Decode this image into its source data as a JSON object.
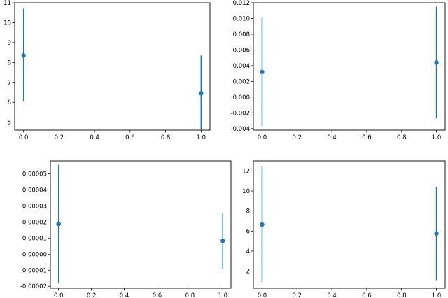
{
  "chart_data": [
    {
      "type": "scatter",
      "error_bars": true,
      "x": [
        0.0,
        1.0
      ],
      "y": [
        8.35,
        6.45
      ],
      "y_low": [
        6.05,
        4.6
      ],
      "y_high": [
        10.7,
        8.35
      ],
      "xlim": [
        -0.05,
        1.05
      ],
      "ylim": [
        4.6,
        11.0
      ],
      "x_ticks": [
        "0.0",
        "0.2",
        "0.4",
        "0.6",
        "0.8",
        "1.0"
      ],
      "y_ticks": [
        "5",
        "6",
        "7",
        "8",
        "9",
        "10",
        "11"
      ],
      "grid": false,
      "color": "#1f77b4"
    },
    {
      "type": "scatter",
      "error_bars": true,
      "x": [
        0.0,
        1.0
      ],
      "y": [
        0.0032,
        0.0044
      ],
      "y_low": [
        -0.0037,
        -0.0027
      ],
      "y_high": [
        0.0102,
        0.0115
      ],
      "xlim": [
        -0.05,
        1.05
      ],
      "ylim": [
        -0.0042,
        0.012
      ],
      "x_ticks": [
        "0.0",
        "0.2",
        "0.4",
        "0.6",
        "0.8",
        "1.0"
      ],
      "y_ticks": [
        "-0.004",
        "-0.002",
        "0.000",
        "0.002",
        "0.004",
        "0.006",
        "0.008",
        "0.010",
        "0.012"
      ],
      "grid": false,
      "color": "#1f77b4"
    },
    {
      "type": "scatter",
      "error_bars": true,
      "x": [
        0.0,
        1.0
      ],
      "y": [
        1.88e-05,
        8.3e-06
      ],
      "y_low": [
        -1.82e-05,
        -9.5e-06
      ],
      "y_high": [
        5.55e-05,
        2.58e-05
      ],
      "xlim": [
        -0.05,
        1.05
      ],
      "ylim": [
        -2.12e-05,
        5.8e-05
      ],
      "x_ticks": [
        "0.0",
        "0.2",
        "0.4",
        "0.6",
        "0.8",
        "1.0"
      ],
      "y_ticks": [
        "-0.00002",
        "-0.00001",
        "0.00000",
        "0.00001",
        "0.00002",
        "0.00003",
        "0.00004",
        "0.00005"
      ],
      "grid": false,
      "color": "#1f77b4"
    },
    {
      "type": "scatter",
      "error_bars": true,
      "x": [
        0.0,
        1.0
      ],
      "y": [
        6.65,
        5.75
      ],
      "y_low": [
        0.9,
        1.1
      ],
      "y_high": [
        12.5,
        10.4
      ],
      "xlim": [
        -0.05,
        1.05
      ],
      "ylim": [
        0.3,
        13.0
      ],
      "x_ticks": [
        "0.0",
        "0.2",
        "0.4",
        "0.6",
        "0.8",
        "1.0"
      ],
      "y_ticks": [
        "2",
        "4",
        "6",
        "8",
        "10",
        "12"
      ],
      "grid": false,
      "color": "#1f77b4"
    }
  ]
}
